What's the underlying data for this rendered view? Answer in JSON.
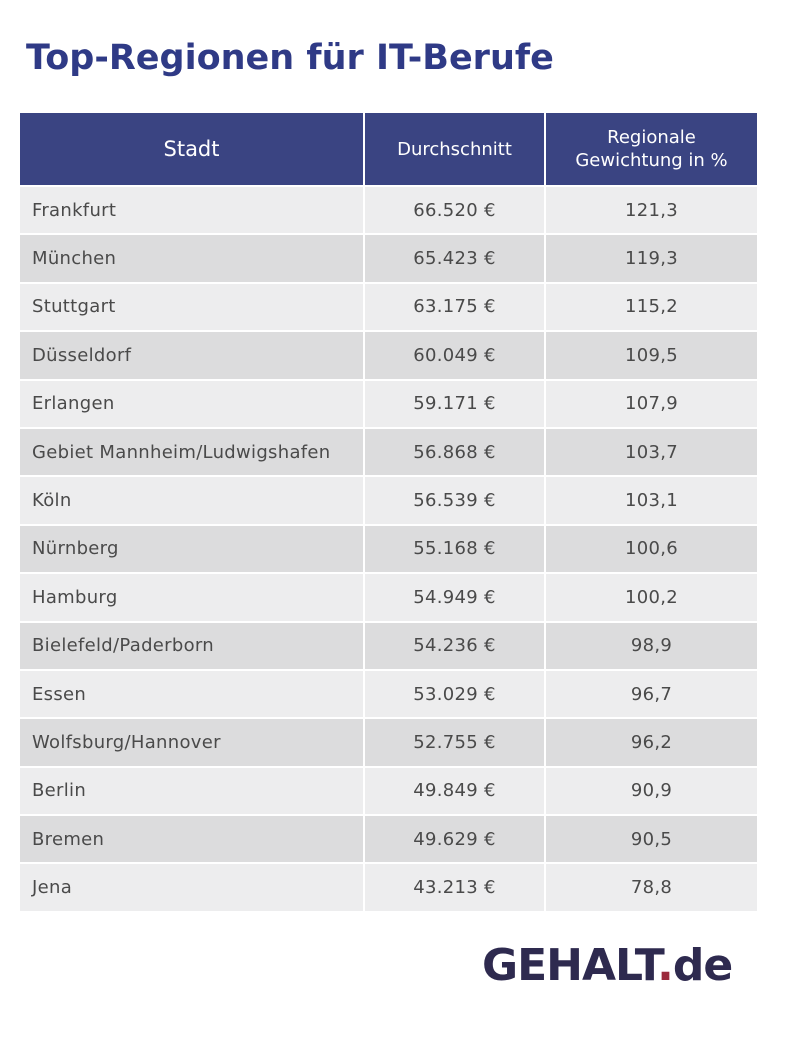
{
  "title": "Top-Regionen für IT-Berufe",
  "chart_data": {
    "type": "table",
    "columns": [
      "Stadt",
      "Durchschnitt",
      "Regionale Gewichtung in %"
    ],
    "rows": [
      {
        "city": "Frankfurt",
        "average": "66.520 €",
        "weight": "121,3"
      },
      {
        "city": "München",
        "average": "65.423 €",
        "weight": "119,3"
      },
      {
        "city": "Stuttgart",
        "average": "63.175 €",
        "weight": "115,2"
      },
      {
        "city": "Düsseldorf",
        "average": "60.049 €",
        "weight": "109,5"
      },
      {
        "city": "Erlangen",
        "average": "59.171 €",
        "weight": "107,9"
      },
      {
        "city": "Gebiet Mannheim/Ludwigshafen",
        "average": "56.868 €",
        "weight": "103,7"
      },
      {
        "city": "Köln",
        "average": "56.539 €",
        "weight": "103,1"
      },
      {
        "city": "Nürnberg",
        "average": "55.168 €",
        "weight": "100,6"
      },
      {
        "city": "Hamburg",
        "average": "54.949 €",
        "weight": "100,2"
      },
      {
        "city": "Bielefeld/Paderborn",
        "average": "54.236 €",
        "weight": "98,9"
      },
      {
        "city": "Essen",
        "average": "53.029 €",
        "weight": "96,7"
      },
      {
        "city": "Wolfsburg/Hannover",
        "average": "52.755 €",
        "weight": "96,2"
      },
      {
        "city": "Berlin",
        "average": "49.849 €",
        "weight": "90,9"
      },
      {
        "city": "Bremen",
        "average": "49.629 €",
        "weight": "90,5"
      },
      {
        "city": "Jena",
        "average": "43.213 €",
        "weight": "78,8"
      }
    ]
  },
  "logo": {
    "main": "GEHALT",
    "dot": ".",
    "suffix": "de"
  },
  "colors": {
    "title": "#2f3a86",
    "header_bg": "#3a4482",
    "row_light": "#ededee",
    "row_dark": "#dcdcdd",
    "logo": "#2e2a4f",
    "logo_dot": "#9b2a3b"
  }
}
